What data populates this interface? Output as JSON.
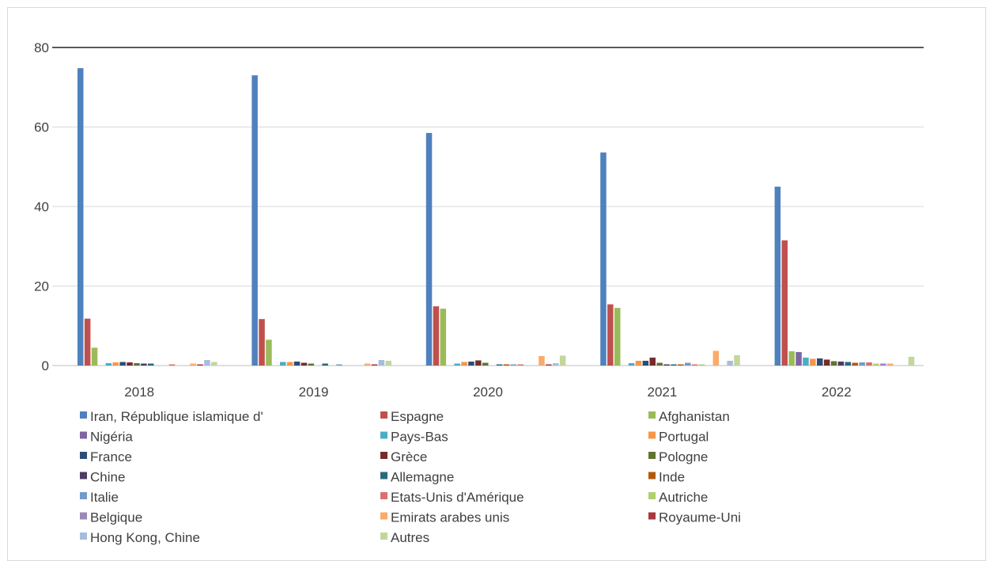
{
  "chart_data": {
    "type": "bar",
    "categories": [
      "2018",
      "2019",
      "2020",
      "2021",
      "2022"
    ],
    "ylim": [
      0,
      80
    ],
    "yticks": [
      "0",
      "20",
      "40",
      "60",
      "80"
    ],
    "grid": true,
    "legend_position": "bottom",
    "series": [
      {
        "name": "Iran, République islamique d'",
        "color": "#4f81bd",
        "values": [
          74.8,
          73.0,
          58.5,
          53.6,
          45.0
        ]
      },
      {
        "name": "Espagne",
        "color": "#c0504d",
        "values": [
          11.8,
          11.7,
          14.9,
          15.4,
          31.5
        ]
      },
      {
        "name": "Afghanistan",
        "color": "#9bbb59",
        "values": [
          4.5,
          6.5,
          14.3,
          14.5,
          3.6
        ]
      },
      {
        "name": "Nigéria",
        "color": "#8064a2",
        "values": [
          0.0,
          0.0,
          0.0,
          0.0,
          3.4
        ]
      },
      {
        "name": "Pays-Bas",
        "color": "#4bacc6",
        "values": [
          0.6,
          0.9,
          0.5,
          0.6,
          2.0
        ]
      },
      {
        "name": "Portugal",
        "color": "#f79646",
        "values": [
          0.8,
          0.9,
          0.9,
          1.2,
          1.7
        ]
      },
      {
        "name": "France",
        "color": "#2c4d75",
        "values": [
          0.9,
          1.0,
          1.0,
          1.2,
          1.8
        ]
      },
      {
        "name": "Grèce",
        "color": "#772c2a",
        "values": [
          0.8,
          0.7,
          1.3,
          2.0,
          1.5
        ]
      },
      {
        "name": "Pologne",
        "color": "#5f7530",
        "values": [
          0.6,
          0.5,
          0.7,
          0.7,
          1.1
        ]
      },
      {
        "name": "Chine",
        "color": "#4d3b62",
        "values": [
          0.5,
          0.0,
          0.0,
          0.3,
          1.0
        ]
      },
      {
        "name": "Allemagne",
        "color": "#276a7c",
        "values": [
          0.5,
          0.5,
          0.3,
          0.3,
          0.9
        ]
      },
      {
        "name": "Inde",
        "color": "#b65708",
        "values": [
          0.0,
          0.0,
          0.3,
          0.3,
          0.7
        ]
      },
      {
        "name": "Italie",
        "color": "#729aca",
        "values": [
          0.0,
          0.3,
          0.3,
          0.7,
          0.8
        ]
      },
      {
        "name": "Etats-Unis d'Amérique",
        "color": "#d9726f",
        "values": [
          0.3,
          0.0,
          0.3,
          0.3,
          0.8
        ]
      },
      {
        "name": "Autriche",
        "color": "#afd16b",
        "values": [
          0.0,
          0.0,
          0.0,
          0.3,
          0.5
        ]
      },
      {
        "name": "Belgique",
        "color": "#9d87b8",
        "values": [
          0.0,
          0.0,
          0.0,
          0.0,
          0.5
        ]
      },
      {
        "name": "Emirats arabes unis",
        "color": "#f9ab6b",
        "values": [
          0.5,
          0.5,
          2.4,
          3.7,
          0.5
        ]
      },
      {
        "name": "Royaume-Uni",
        "color": "#a9373b",
        "values": [
          0.3,
          0.3,
          0.3,
          0.0,
          0.0
        ]
      },
      {
        "name": "Hong Kong, Chine",
        "color": "#a5bddc",
        "values": [
          1.4,
          1.4,
          0.6,
          1.2,
          0.0
        ]
      },
      {
        "name": "Autres",
        "color": "#c3d69b",
        "values": [
          0.9,
          1.2,
          2.5,
          2.6,
          2.2
        ]
      }
    ]
  }
}
